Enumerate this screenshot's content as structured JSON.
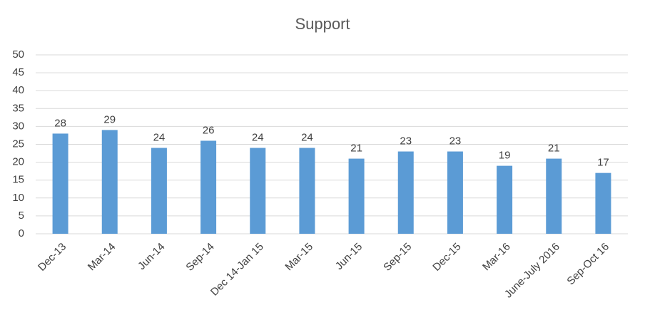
{
  "chart_data": {
    "type": "bar",
    "title": "Support",
    "categories": [
      "Dec-13",
      "Mar-14",
      "Jun-14",
      "Sep-14",
      "Dec 14-Jan 15",
      "Mar-15",
      "Jun-15",
      "Sep-15",
      "Dec-15",
      "Mar-16",
      "June-July 2016",
      "Sep-Oct 16"
    ],
    "values": [
      28,
      29,
      24,
      26,
      24,
      24,
      21,
      23,
      23,
      19,
      21,
      17
    ],
    "color": "#5b9bd5",
    "ylim": [
      0,
      50
    ],
    "yticks": [
      0,
      5,
      10,
      15,
      20,
      25,
      30,
      35,
      40,
      45,
      50
    ],
    "grid": true
  }
}
